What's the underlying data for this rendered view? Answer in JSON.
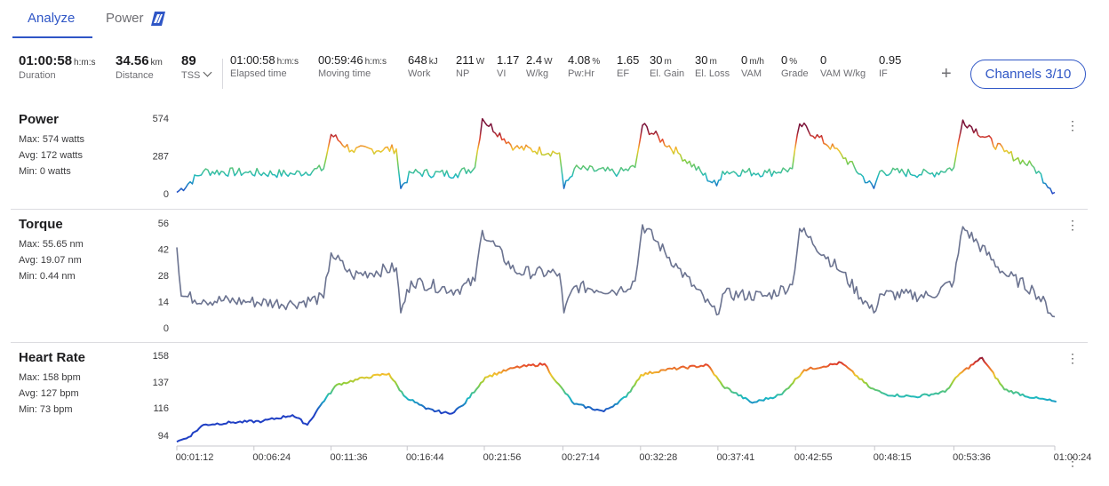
{
  "tabs": [
    {
      "label": "Analyze",
      "active": true
    },
    {
      "label": "Power",
      "active": false
    }
  ],
  "summary": [
    {
      "value": "01:00:58",
      "unit": "h:m:s",
      "label": "Duration"
    },
    {
      "value": "34.56",
      "unit": "km",
      "label": "Distance"
    },
    {
      "value": "89",
      "unit": "",
      "label": "TSS"
    },
    {
      "value": "01:00:58",
      "unit": "h:m:s",
      "label": "Elapsed time"
    },
    {
      "value": "00:59:46",
      "unit": "h:m:s",
      "label": "Moving time"
    },
    {
      "value": "648",
      "unit": "kJ",
      "label": "Work"
    },
    {
      "value": "211",
      "unit": "W",
      "label": "NP"
    },
    {
      "value": "1.17",
      "unit": "",
      "label": "VI"
    },
    {
      "value": "2.4",
      "unit": "W",
      "label": "W/kg"
    },
    {
      "value": "4.08",
      "unit": "%",
      "label": "Pw:Hr"
    },
    {
      "value": "1.65",
      "unit": "",
      "label": "EF"
    },
    {
      "value": "30",
      "unit": "m",
      "label": "El. Gain"
    },
    {
      "value": "30",
      "unit": "m",
      "label": "El. Loss"
    },
    {
      "value": "0",
      "unit": "m/h",
      "label": "VAM"
    },
    {
      "value": "0",
      "unit": "%",
      "label": "Grade"
    },
    {
      "value": "0",
      "unit": "",
      "label": "VAM W/kg"
    },
    {
      "value": "0.95",
      "unit": "",
      "label": "IF"
    }
  ],
  "channels_button": "Channels 3/10",
  "colors": {
    "accent": "#2f56c6",
    "torque_line": "#6b7390",
    "gradient_low": "#1f3fc4",
    "gradient_mid": "#f2c62d",
    "gradient_high": "#7c1238"
  },
  "chart_data": [
    {
      "type": "line",
      "title": "Power",
      "stats": [
        {
          "name": "Max",
          "value": "574",
          "unit": "watts"
        },
        {
          "name": "Avg",
          "value": "172",
          "unit": "watts"
        },
        {
          "name": "Min",
          "value": "0",
          "unit": "watts"
        }
      ],
      "ylim": [
        0,
        574
      ],
      "yticks": [
        "574",
        "287",
        "0"
      ],
      "color_mode": "gradient",
      "x_minutes": [
        1.2,
        3,
        6,
        9,
        11.1,
        11.6,
        13,
        16,
        16.3,
        17,
        20,
        21.3,
        21.8,
        24,
        27,
        27.3,
        28,
        31,
        32.1,
        32.6,
        35,
        37.6,
        38,
        41,
        42.7,
        43.2,
        46,
        48.2,
        48.6,
        52,
        53.6,
        54.2,
        57,
        59,
        60.4
      ],
      "values": [
        10,
        170,
        160,
        150,
        190,
        450,
        330,
        340,
        40,
        160,
        150,
        200,
        570,
        350,
        310,
        40,
        190,
        160,
        200,
        520,
        310,
        60,
        170,
        160,
        190,
        530,
        300,
        40,
        170,
        150,
        200,
        560,
        320,
        200,
        10
      ]
    },
    {
      "type": "line",
      "title": "Torque",
      "stats": [
        {
          "name": "Max",
          "value": "55.65",
          "unit": "nm"
        },
        {
          "name": "Avg",
          "value": "19.07",
          "unit": "nm"
        },
        {
          "name": "Min",
          "value": "0.44",
          "unit": "nm"
        }
      ],
      "ylim": [
        0,
        56
      ],
      "yticks": [
        "56",
        "42",
        "28",
        "14",
        "0"
      ],
      "color_mode": "solid",
      "x_minutes": [
        1.2,
        1.5,
        3,
        6,
        9,
        11.1,
        11.6,
        13,
        16,
        16.3,
        17,
        20,
        21.3,
        21.8,
        24,
        27,
        27.3,
        28,
        31,
        32.1,
        32.6,
        35,
        37.6,
        38,
        41,
        42.7,
        43.2,
        46,
        48.2,
        48.6,
        52,
        53.6,
        54.2,
        57,
        59,
        60.4
      ],
      "values": [
        43,
        17,
        15,
        14,
        13,
        16,
        40,
        28,
        32,
        8,
        25,
        20,
        25,
        52,
        30,
        29,
        8,
        22,
        20,
        25,
        55,
        32,
        7,
        18,
        17,
        23,
        53,
        30,
        8,
        18,
        17,
        25,
        54,
        29,
        20,
        6
      ]
    },
    {
      "type": "line",
      "title": "Heart Rate",
      "stats": [
        {
          "name": "Max",
          "value": "158",
          "unit": "bpm"
        },
        {
          "name": "Avg",
          "value": "127",
          "unit": "bpm"
        },
        {
          "name": "Min",
          "value": "73",
          "unit": "bpm"
        }
      ],
      "ylim": [
        85,
        158
      ],
      "yticks": [
        "158",
        "137",
        "116",
        "94"
      ],
      "color_mode": "gradient",
      "x_minutes": [
        1.2,
        2,
        3,
        5,
        7,
        9,
        10,
        11,
        12,
        14,
        15.5,
        16.5,
        18,
        19.6,
        20.5,
        22,
        24,
        26,
        26.8,
        28,
        30,
        31.5,
        32.5,
        34,
        37,
        38,
        40,
        42,
        43.5,
        46,
        48,
        49,
        51,
        53,
        54,
        55.5,
        57,
        59,
        60.5
      ],
      "values": [
        87,
        91,
        101,
        103,
        104,
        109,
        101,
        119,
        134,
        140,
        143,
        125,
        114,
        110,
        117,
        140,
        148,
        151,
        136,
        118,
        112,
        124,
        142,
        146,
        150,
        133,
        119,
        126,
        146,
        152,
        131,
        126,
        124,
        128,
        143,
        156,
        130,
        123,
        120
      ]
    }
  ],
  "x_axis": {
    "range_minutes": [
      1.2,
      60.4
    ],
    "tick_labels": [
      "00:01:12",
      "00:06:24",
      "00:11:36",
      "00:16:44",
      "00:21:56",
      "00:27:14",
      "00:32:28",
      "00:37:41",
      "00:42:55",
      "00:48:15",
      "00:53:36",
      "01:00:24"
    ],
    "tick_minutes": [
      1.2,
      6.4,
      11.6,
      16.733,
      21.933,
      27.233,
      32.467,
      37.683,
      42.917,
      48.25,
      53.6,
      60.4
    ]
  }
}
